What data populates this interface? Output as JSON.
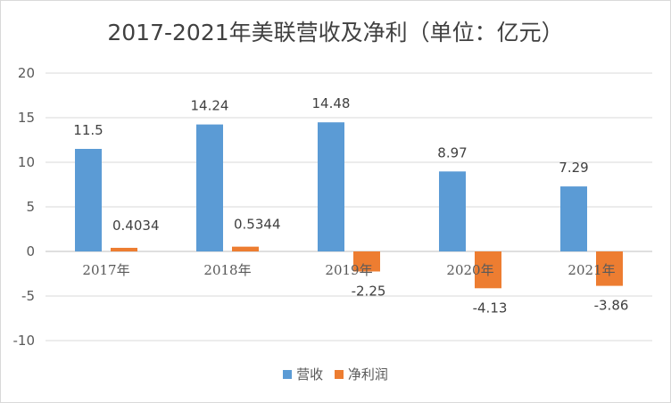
{
  "chart_data": {
    "type": "bar",
    "title": "2017-2021年美联营收及净利（单位：亿元）",
    "categories": [
      "2017年",
      "2018年",
      "2019年",
      "2020年",
      "2021年"
    ],
    "series": [
      {
        "name": "营收",
        "color": "#5b9bd5",
        "values": [
          11.5,
          14.24,
          14.48,
          8.97,
          7.29
        ],
        "labels": [
          "11.5",
          "14.24",
          "14.48",
          "8.97",
          "7.29"
        ]
      },
      {
        "name": "净利润",
        "color": "#ed7d31",
        "values": [
          0.4034,
          0.5344,
          -2.25,
          -4.13,
          -3.86
        ],
        "labels": [
          "0.4034",
          "0.5344",
          "-2.25",
          "-4.13",
          "-3.86"
        ]
      }
    ],
    "ylim": [
      -10,
      20
    ],
    "yticks": [
      20,
      15,
      10,
      5,
      0,
      -5,
      -10
    ],
    "grid": true,
    "legend": "bottom",
    "xlabel": "",
    "ylabel": ""
  }
}
